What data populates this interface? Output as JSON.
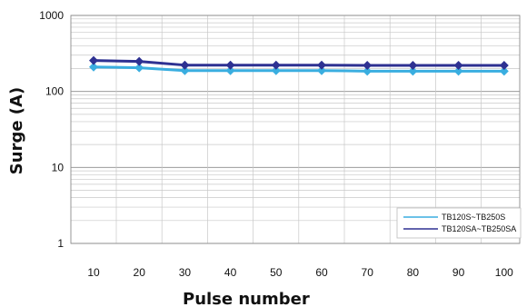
{
  "chart_data": {
    "type": "line",
    "title": "",
    "xlabel": "Pulse number",
    "ylabel": "Surge (A)",
    "x": [
      10,
      20,
      30,
      40,
      50,
      60,
      70,
      80,
      90,
      100
    ],
    "x_tick_labels": [
      "10",
      "20",
      "30",
      "40",
      "50",
      "60",
      "70",
      "80",
      "90",
      "100"
    ],
    "y_scale": "log",
    "ylim": [
      1,
      1000
    ],
    "y_tick_labels": [
      "1",
      "10",
      "100",
      "1000"
    ],
    "grid": true,
    "legend_position": "bottom-right",
    "series": [
      {
        "name": "TB120S~TB250S",
        "color": "#3aaee0",
        "marker": "diamond",
        "values": [
          210,
          205,
          188,
          188,
          188,
          188,
          185,
          185,
          185,
          185
        ]
      },
      {
        "name": "TB120SA~TB250SA",
        "color": "#2e3192",
        "marker": "diamond",
        "values": [
          255,
          248,
          222,
          222,
          222,
          222,
          220,
          220,
          220,
          220
        ]
      }
    ]
  }
}
